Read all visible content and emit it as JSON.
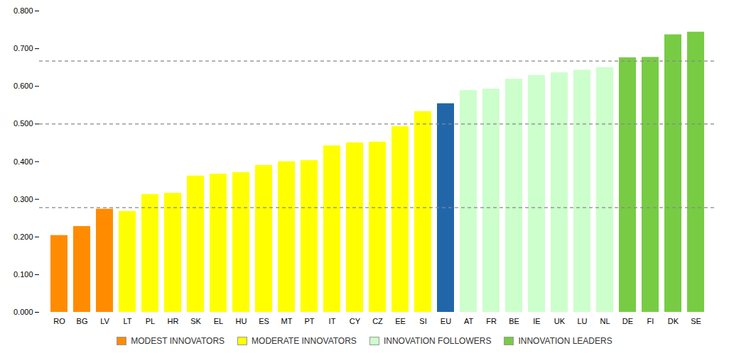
{
  "chart_data": {
    "type": "bar",
    "categories": [
      "RO",
      "BG",
      "LV",
      "LT",
      "PL",
      "HR",
      "SK",
      "EL",
      "HU",
      "ES",
      "MT",
      "PT",
      "IT",
      "CY",
      "CZ",
      "EE",
      "SI",
      "EU",
      "AT",
      "FR",
      "BE",
      "IE",
      "UK",
      "LU",
      "NL",
      "DE",
      "FI",
      "DK",
      "SE"
    ],
    "values": [
      0.204,
      0.228,
      0.274,
      0.268,
      0.313,
      0.316,
      0.362,
      0.367,
      0.371,
      0.39,
      0.4,
      0.403,
      0.442,
      0.45,
      0.452,
      0.493,
      0.533,
      0.554,
      0.589,
      0.593,
      0.619,
      0.629,
      0.636,
      0.643,
      0.65,
      0.676,
      0.677,
      0.737,
      0.744
    ],
    "colors": [
      "#FF8C00",
      "#FF8C00",
      "#FF8C00",
      "#FFFF00",
      "#FFFF00",
      "#FFFF00",
      "#FFFF00",
      "#FFFF00",
      "#FFFF00",
      "#FFFF00",
      "#FFFF00",
      "#FFFF00",
      "#FFFF00",
      "#FFFF00",
      "#FFFF00",
      "#FFFF00",
      "#FFFF00",
      "#2266AA",
      "#CCFFCC",
      "#CCFFCC",
      "#CCFFCC",
      "#CCFFCC",
      "#CCFFCC",
      "#CCFFCC",
      "#CCFFCC",
      "#77CC44",
      "#77CC44",
      "#77CC44",
      "#77CC44"
    ],
    "hlines": {
      "values": [
        0.278,
        0.5,
        0.667
      ],
      "color": "#888888",
      "line_style": "dashed"
    },
    "ylim": [
      0.0,
      0.8
    ],
    "yticks": [
      {
        "value": 0.0,
        "label": "0.000"
      },
      {
        "value": 0.1,
        "label": "0.100"
      },
      {
        "value": 0.2,
        "label": "0.200"
      },
      {
        "value": 0.3,
        "label": "0.300"
      },
      {
        "value": 0.4,
        "label": "0.400"
      },
      {
        "value": 0.5,
        "label": "0.500"
      },
      {
        "value": 0.6,
        "label": "0.600"
      },
      {
        "value": 0.7,
        "label": "0.700"
      },
      {
        "value": 0.8,
        "label": "0.800"
      }
    ],
    "grid": false,
    "legend": "bottom",
    "legend_items": [
      {
        "label": "MODEST INNOVATORS",
        "color": "#FF8C00"
      },
      {
        "label": "MODERATE INNOVATORS",
        "color": "#FFFF00"
      },
      {
        "label": "INNOVATION FOLLOWERS",
        "color": "#CCFFCC"
      },
      {
        "label": "INNOVATION LEADERS",
        "color": "#77CC44"
      }
    ]
  }
}
